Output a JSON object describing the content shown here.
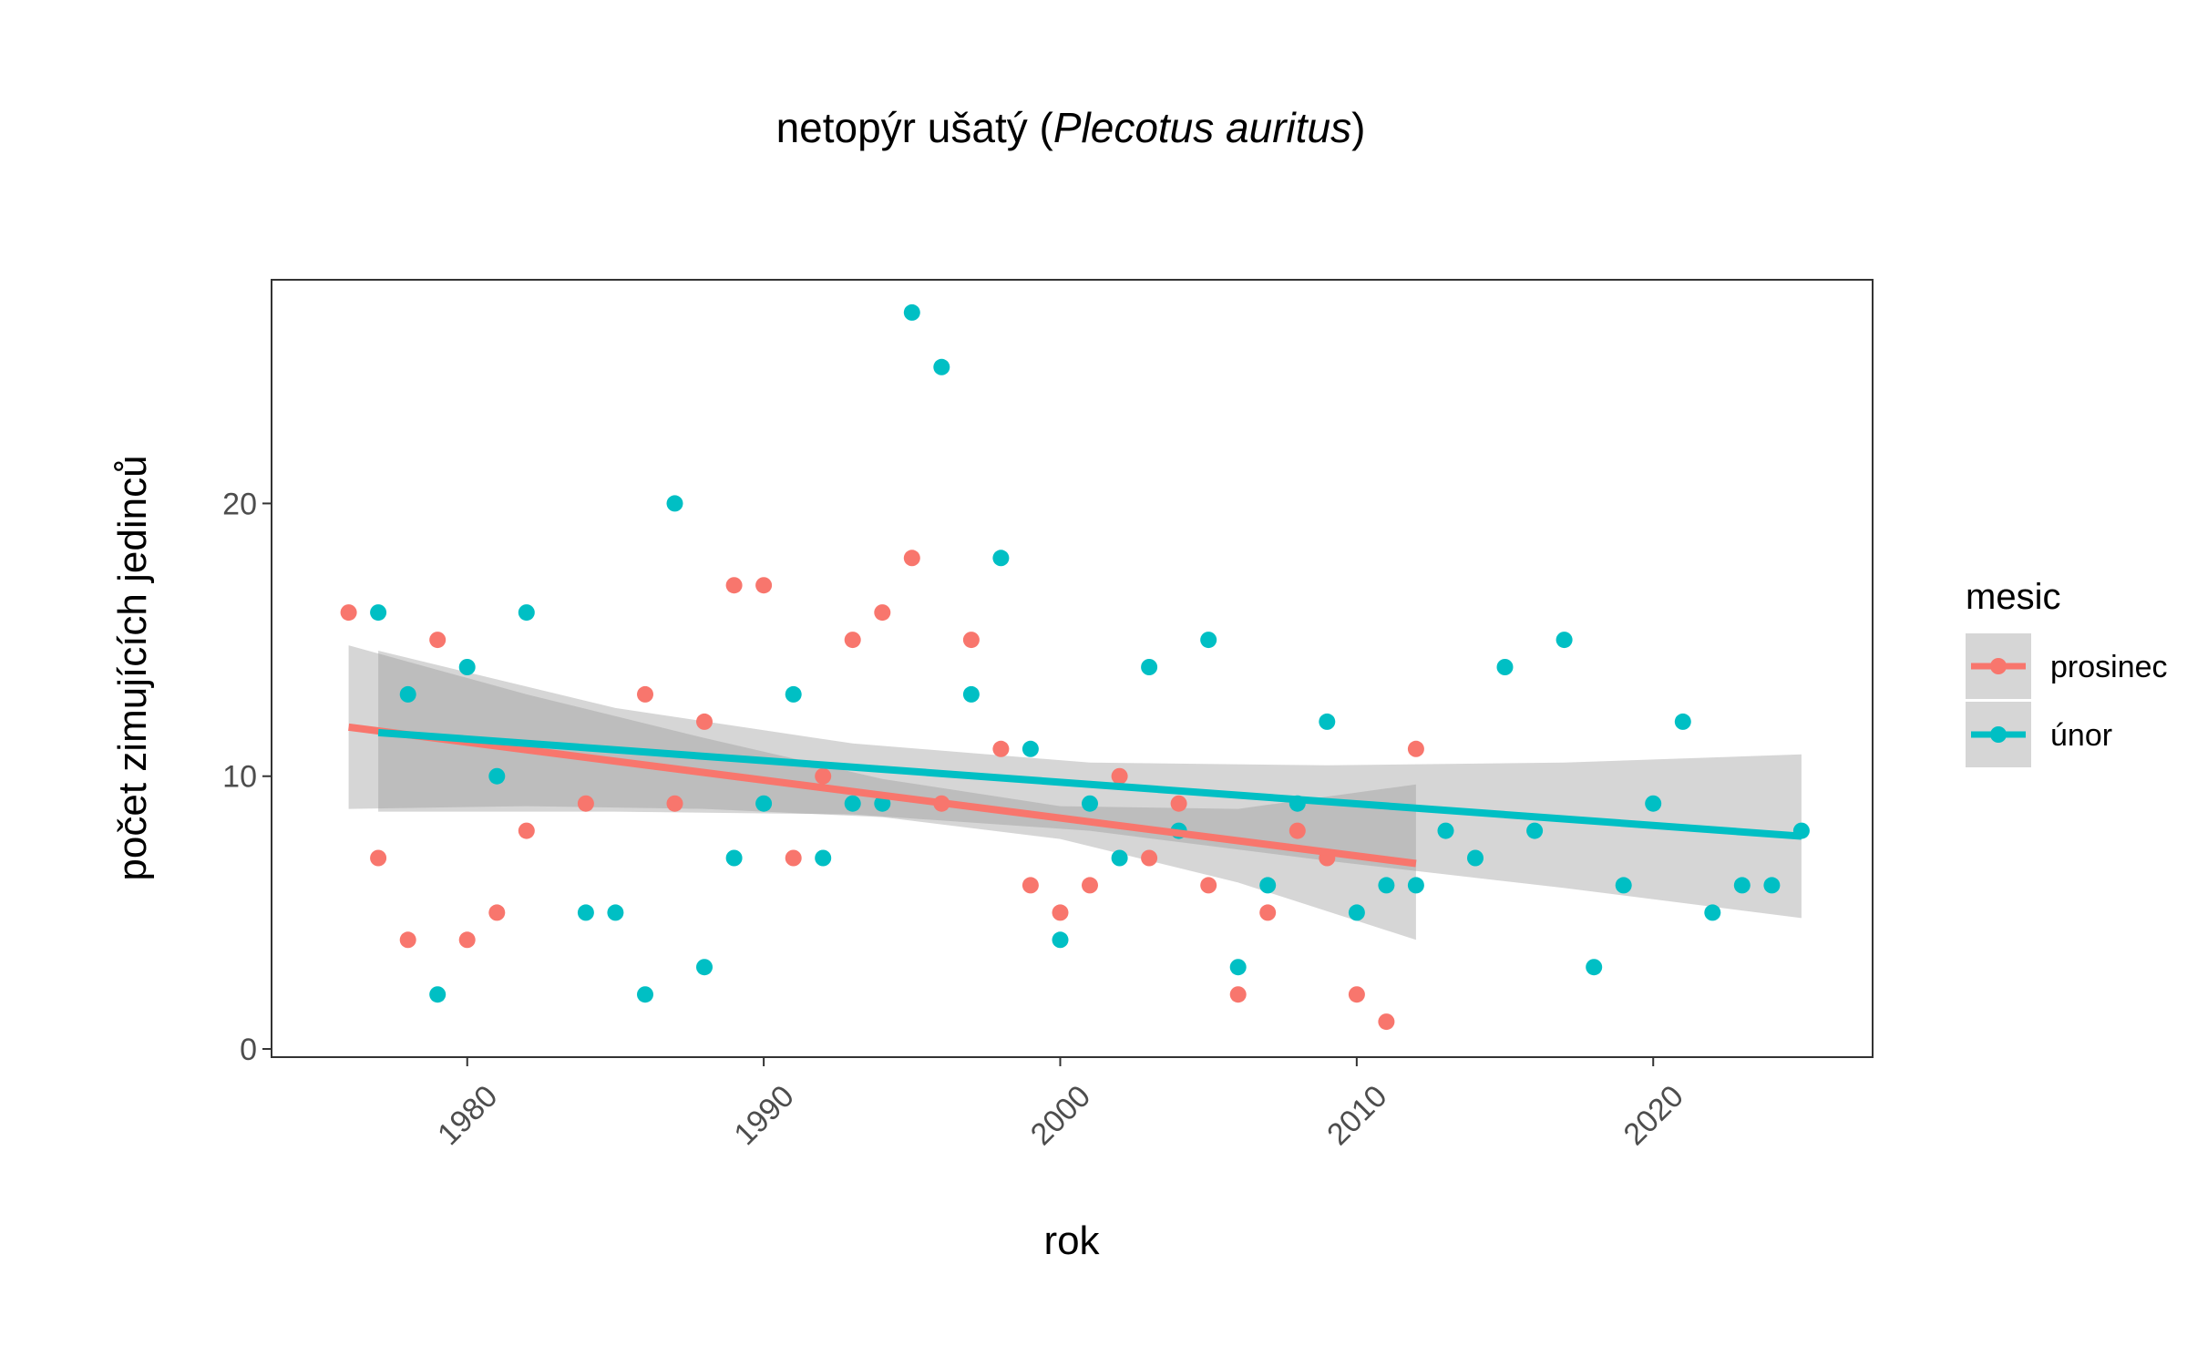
{
  "chart_data": {
    "type": "scatter",
    "title": "netopýr ušatý (",
    "title_italic": "Plecotus auritus",
    "title_end": ")",
    "xlabel": "rok",
    "ylabel": "počet zimujících jedinců",
    "xlim": [
      1973.4,
      2027.4
    ],
    "ylim": [
      -0.3,
      28.2
    ],
    "x_ticks": [
      1980,
      1990,
      2000,
      2010,
      2020
    ],
    "y_ticks": [
      0,
      10,
      20
    ],
    "grid": false,
    "legend": {
      "title": "mesic",
      "position": "right",
      "entries": [
        "prosinec",
        "únor"
      ]
    },
    "series": [
      {
        "name": "prosinec",
        "color": "#F8766D",
        "x": [
          1976,
          1977,
          1978,
          1979,
          1980,
          1981,
          1982,
          1984,
          1986,
          1987,
          1988,
          1989,
          1990,
          1991,
          1992,
          1993,
          1994,
          1995,
          1996,
          1997,
          1998,
          1999,
          2000,
          2001,
          2002,
          2003,
          2004,
          2005,
          2006,
          2007,
          2008,
          2009,
          2010,
          2011,
          2012
        ],
        "y": [
          16,
          7,
          4,
          15,
          4,
          5,
          8,
          9,
          13,
          9,
          12,
          17,
          17,
          7,
          10,
          15,
          16,
          18,
          9,
          15,
          11,
          6,
          5,
          6,
          10,
          7,
          9,
          6,
          2,
          5,
          8,
          7,
          2,
          1,
          11
        ],
        "trend": {
          "x": [
            1976,
            2012
          ],
          "y": [
            11.8,
            6.8
          ]
        },
        "band": {
          "x": [
            1976,
            1982,
            1988,
            1994,
            2000,
            2006,
            2012
          ],
          "lower": [
            8.8,
            8.9,
            8.8,
            8.5,
            7.7,
            6.1,
            4.0
          ],
          "upper": [
            14.8,
            13.0,
            11.4,
            9.9,
            8.9,
            8.8,
            9.7
          ]
        }
      },
      {
        "name": "únor",
        "color": "#00BFC4",
        "x": [
          1977,
          1978,
          1979,
          1980,
          1981,
          1982,
          1984,
          1985,
          1986,
          1987,
          1988,
          1989,
          1990,
          1991,
          1992,
          1993,
          1994,
          1995,
          1996,
          1997,
          1998,
          1999,
          2000,
          2001,
          2002,
          2003,
          2004,
          2005,
          2006,
          2007,
          2008,
          2009,
          2010,
          2011,
          2012,
          2013,
          2014,
          2015,
          2016,
          2017,
          2018,
          2019,
          2020,
          2021,
          2022,
          2023,
          2024,
          2025
        ],
        "y": [
          16,
          13,
          2,
          14,
          10,
          16,
          5,
          5,
          2,
          20,
          3,
          7,
          9,
          13,
          7,
          9,
          9,
          27,
          25,
          13,
          18,
          11,
          4,
          9,
          7,
          14,
          8,
          15,
          3,
          6,
          9,
          12,
          5,
          6,
          6,
          8,
          7,
          14,
          8,
          15,
          3,
          6,
          9,
          12,
          5,
          6,
          6,
          8
        ],
        "trend": {
          "x": [
            1977,
            2025
          ],
          "y": [
            11.6,
            7.8
          ]
        },
        "band": {
          "x": [
            1977,
            1985,
            1993,
            2001,
            2009,
            2017,
            2025
          ],
          "lower": [
            8.7,
            8.7,
            8.6,
            8.0,
            6.9,
            5.9,
            4.8
          ],
          "upper": [
            14.6,
            12.5,
            11.2,
            10.5,
            10.4,
            10.5,
            10.8
          ]
        }
      }
    ]
  }
}
